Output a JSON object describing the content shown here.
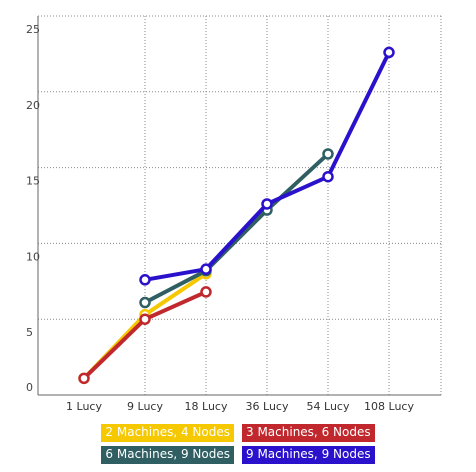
{
  "chart_data": {
    "type": "line",
    "title": "",
    "xlabel": "",
    "ylabel": "",
    "categories": [
      "1 Lucy",
      "9 Lucy",
      "18 Lucy",
      "36 Lucy",
      "54 Lucy",
      "108 Lucy"
    ],
    "y_ticks": [
      "0",
      "5",
      "10",
      "15",
      "20",
      "25"
    ],
    "ylim": [
      0,
      25
    ],
    "grid": true,
    "legend_position": "bottom",
    "series": [
      {
        "name": "2 Machines, 4 Nodes",
        "color": "#f5c800",
        "values": [
          1.1,
          5.3,
          8.0,
          null,
          null,
          null
        ]
      },
      {
        "name": "3 Machines, 6 Nodes",
        "color": "#c0282d",
        "values": [
          1.1,
          5.0,
          6.8,
          null,
          null,
          null
        ]
      },
      {
        "name": "6 Machines, 9 Nodes",
        "color": "#2f5f63",
        "values": [
          null,
          6.1,
          8.2,
          12.2,
          15.9,
          null
        ]
      },
      {
        "name": "9 Machines, 9 Nodes",
        "color": "#2a12cc",
        "values": [
          null,
          7.6,
          8.3,
          12.6,
          14.4,
          22.6
        ]
      }
    ]
  }
}
